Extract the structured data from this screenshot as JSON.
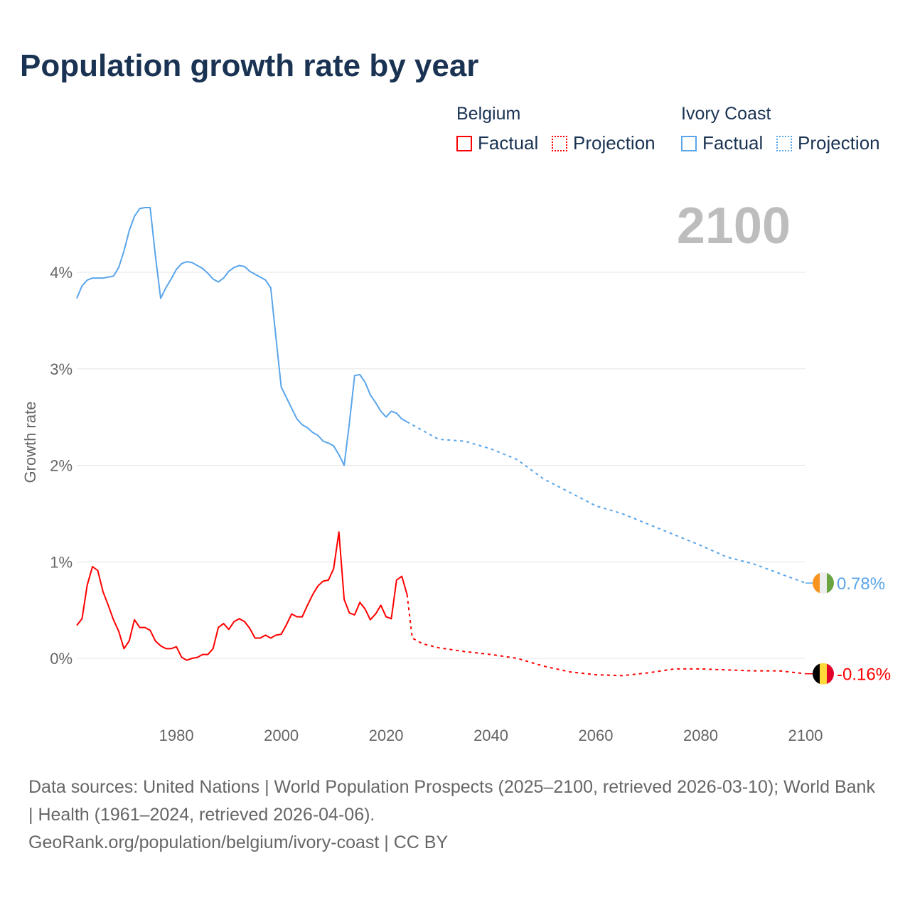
{
  "title": "Population growth rate by year",
  "legend": {
    "groups": [
      {
        "name": "Belgium",
        "factual": "Factual",
        "projection": "Projection"
      },
      {
        "name": "Ivory Coast",
        "factual": "Factual",
        "projection": "Projection"
      }
    ]
  },
  "footer": {
    "sources": "Data sources: United Nations | World Population Prospects (2025–2100, retrieved 2026-03-10); World Bank | Health (1961–2024, retrieved 2026-04-06).",
    "link": "GeoRank.org/population/belgium/ivory-coast | CC BY"
  },
  "chart_data": {
    "type": "line",
    "title": "Population growth rate by year",
    "ylabel": "Growth rate",
    "xlabel": "",
    "year_label": "2100",
    "xlim": [
      1961,
      2100
    ],
    "ylim": [
      -0.6,
      4.8
    ],
    "x_ticks": [
      1980,
      2000,
      2020,
      2040,
      2060,
      2080,
      2100
    ],
    "y_ticks": [
      0,
      1,
      2,
      3,
      4
    ],
    "y_tick_labels": [
      "0%",
      "1%",
      "2%",
      "3%",
      "4%"
    ],
    "grid": true,
    "series": [
      {
        "name": "Belgium",
        "color": "#ff0000",
        "end_label": "-0.16%",
        "flag": [
          "#000000",
          "#ffd83a",
          "#e0002a"
        ],
        "factual": {
          "x": [
            1961,
            1962,
            1963,
            1964,
            1965,
            1966,
            1967,
            1968,
            1969,
            1970,
            1971,
            1972,
            1973,
            1974,
            1975,
            1976,
            1977,
            1978,
            1979,
            1980,
            1981,
            1982,
            1983,
            1984,
            1985,
            1986,
            1987,
            1988,
            1989,
            1990,
            1991,
            1992,
            1993,
            1994,
            1995,
            1996,
            1997,
            1998,
            1999,
            2000,
            2001,
            2002,
            2003,
            2004,
            2005,
            2006,
            2007,
            2008,
            2009,
            2010,
            2011,
            2012,
            2013,
            2014,
            2015,
            2016,
            2017,
            2018,
            2019,
            2020,
            2021,
            2022,
            2023,
            2024
          ],
          "y": [
            0.34,
            0.41,
            0.76,
            0.95,
            0.91,
            0.69,
            0.55,
            0.4,
            0.28,
            0.1,
            0.18,
            0.4,
            0.32,
            0.32,
            0.29,
            0.18,
            0.13,
            0.1,
            0.1,
            0.12,
            0.01,
            -0.02,
            0.0,
            0.01,
            0.04,
            0.04,
            0.1,
            0.32,
            0.36,
            0.3,
            0.38,
            0.41,
            0.38,
            0.31,
            0.21,
            0.21,
            0.24,
            0.21,
            0.24,
            0.25,
            0.35,
            0.46,
            0.43,
            0.43,
            0.55,
            0.66,
            0.75,
            0.8,
            0.81,
            0.93,
            1.31,
            0.61,
            0.47,
            0.45,
            0.58,
            0.51,
            0.4,
            0.46,
            0.55,
            0.43,
            0.41,
            0.81,
            0.85,
            0.66
          ]
        },
        "projection": {
          "x": [
            2024,
            2025,
            2027,
            2030,
            2035,
            2040,
            2045,
            2050,
            2055,
            2060,
            2065,
            2070,
            2075,
            2080,
            2085,
            2090,
            2095,
            2100
          ],
          "y": [
            0.66,
            0.21,
            0.15,
            0.11,
            0.07,
            0.04,
            0.0,
            -0.08,
            -0.14,
            -0.17,
            -0.18,
            -0.15,
            -0.11,
            -0.11,
            -0.12,
            -0.13,
            -0.13,
            -0.16
          ]
        }
      },
      {
        "name": "Ivory Coast",
        "color": "#5aa5ea",
        "end_label": "0.78%",
        "flag": [
          "#f7931e",
          "#eeeeee",
          "#6aa341"
        ],
        "factual": {
          "x": [
            1961,
            1962,
            1963,
            1964,
            1965,
            1966,
            1967,
            1968,
            1969,
            1970,
            1971,
            1972,
            1973,
            1974,
            1975,
            1976,
            1977,
            1978,
            1979,
            1980,
            1981,
            1982,
            1983,
            1984,
            1985,
            1986,
            1987,
            1988,
            1989,
            1990,
            1991,
            1992,
            1993,
            1994,
            1995,
            1996,
            1997,
            1998,
            1999,
            2000,
            2001,
            2002,
            2003,
            2004,
            2005,
            2006,
            2007,
            2008,
            2009,
            2010,
            2011,
            2012,
            2013,
            2014,
            2015,
            2016,
            2017,
            2018,
            2019,
            2020,
            2021,
            2022,
            2023,
            2024
          ],
          "y": [
            3.73,
            3.86,
            3.92,
            3.94,
            3.94,
            3.94,
            3.95,
            3.96,
            4.05,
            4.22,
            4.43,
            4.58,
            4.66,
            4.67,
            4.67,
            4.17,
            3.73,
            3.84,
            3.93,
            4.03,
            4.09,
            4.11,
            4.1,
            4.07,
            4.04,
            3.99,
            3.93,
            3.9,
            3.94,
            4.01,
            4.05,
            4.07,
            4.06,
            4.01,
            3.98,
            3.95,
            3.92,
            3.84,
            3.32,
            2.81,
            2.7,
            2.59,
            2.48,
            2.42,
            2.39,
            2.34,
            2.31,
            2.25,
            2.23,
            2.2,
            2.11,
            2.0,
            2.44,
            2.93,
            2.94,
            2.86,
            2.73,
            2.65,
            2.56,
            2.5,
            2.56,
            2.54,
            2.48,
            2.45
          ]
        },
        "projection": {
          "x": [
            2024,
            2025,
            2030,
            2035,
            2040,
            2045,
            2050,
            2055,
            2060,
            2065,
            2070,
            2075,
            2080,
            2085,
            2090,
            2095,
            2100
          ],
          "y": [
            2.45,
            2.42,
            2.27,
            2.25,
            2.17,
            2.06,
            1.86,
            1.72,
            1.58,
            1.5,
            1.39,
            1.28,
            1.17,
            1.05,
            0.98,
            0.88,
            0.78
          ]
        }
      }
    ]
  }
}
